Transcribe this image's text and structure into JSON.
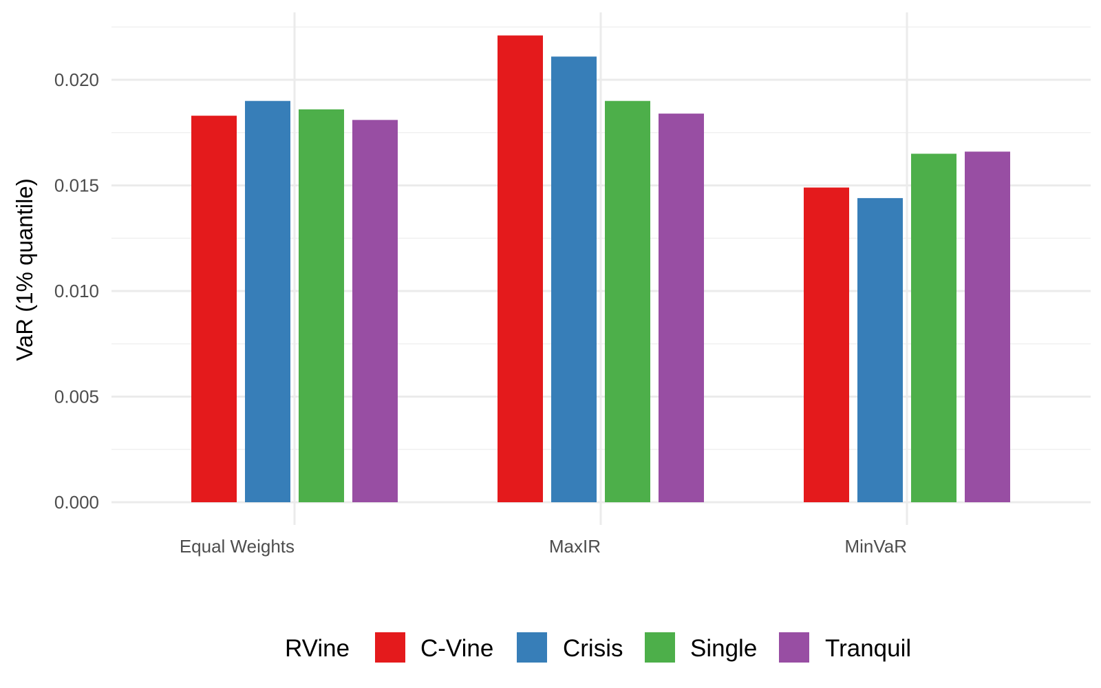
{
  "chart_data": {
    "type": "bar",
    "categories": [
      "Equal Weights",
      "MaxIR",
      "MinVaR"
    ],
    "series": [
      {
        "name": "C-Vine",
        "color": "#E41A1C",
        "values": [
          0.0183,
          0.0221,
          0.0149
        ]
      },
      {
        "name": "Crisis",
        "color": "#377EB8",
        "values": [
          0.019,
          0.0211,
          0.0144
        ]
      },
      {
        "name": "Single",
        "color": "#4DAF4A",
        "values": [
          0.0186,
          0.019,
          0.0165
        ]
      },
      {
        "name": "Tranquil",
        "color": "#984EA3",
        "values": [
          0.0181,
          0.0184,
          0.0166
        ]
      }
    ],
    "ylabel": "VaR (1% quantile)",
    "xlabel": "",
    "ylim": [
      0,
      0.0225
    ],
    "yticks": [
      0.0,
      0.005,
      0.01,
      0.015,
      0.02
    ],
    "ytick_labels": [
      "0.000",
      "0.005",
      "0.010",
      "0.015",
      "0.020"
    ],
    "grid": true,
    "legend": {
      "title": "RVine",
      "position": "bottom"
    }
  }
}
